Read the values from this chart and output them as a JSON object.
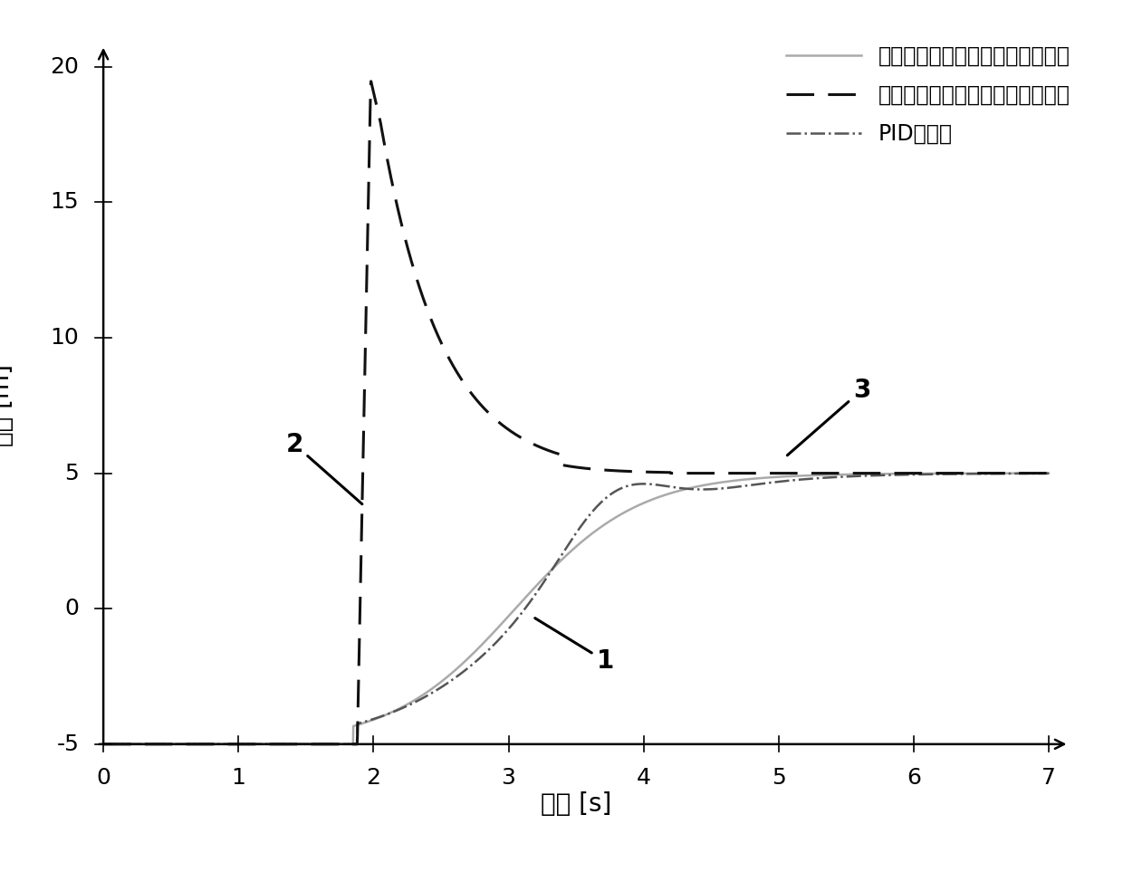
{
  "xlim": [
    0,
    7
  ],
  "ylim": [
    -5.5,
    20.5
  ],
  "xticks": [
    0,
    1,
    2,
    3,
    4,
    5,
    6,
    7
  ],
  "yticks": [
    -5,
    0,
    5,
    10,
    15,
    20
  ],
  "xlabel": "时间 [s]",
  "ylabel": "高度 [m]",
  "legend_labels": [
    "具有测地高度的校正的仿射调节器",
    "没有测地高度的校正的仿射调节器",
    "PID调节器"
  ],
  "annotation_1": "1",
  "annotation_2": "2",
  "annotation_3": "3",
  "line1_color": "#aaaaaa",
  "line2_color": "#111111",
  "line3_color": "#555555",
  "background_color": "#ffffff"
}
